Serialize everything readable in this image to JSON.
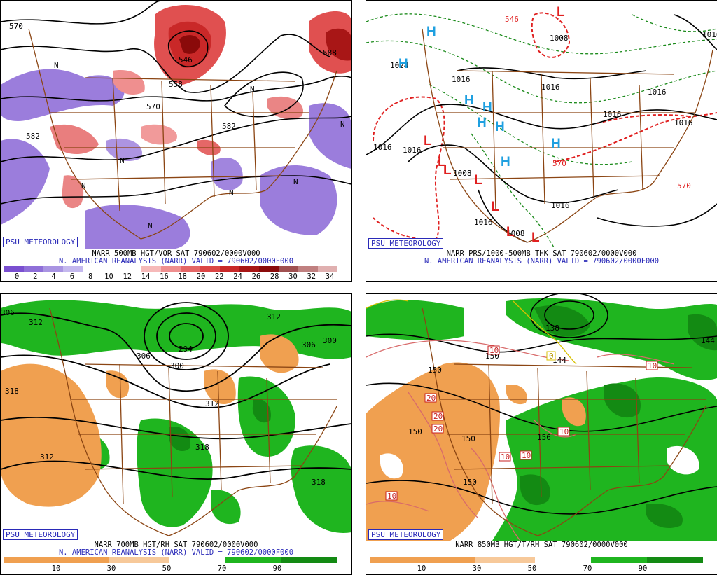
{
  "panels": [
    {
      "badge": "PSU METEOROLOGY",
      "title": "NARR 500MB HGT/VOR SAT 790602/0000V000",
      "subtitle": "N. AMERICAN REANALYSIS (NARR) VALID = 790602/0000F000",
      "colorbar_ticks": [
        "0",
        "2",
        "4",
        "6",
        "8",
        "10",
        "12",
        "14",
        "16",
        "18",
        "20",
        "22",
        "24",
        "26",
        "28",
        "30",
        "32",
        "34"
      ],
      "colorbar_colors": [
        "#7a4fd0",
        "#8f6fd8",
        "#a994e2",
        "#c4b8ee",
        "#ffffff",
        "#ffffff",
        "#ffffff",
        "#f6b9b9",
        "#ef8f8f",
        "#e56767",
        "#dc4646",
        "#c92828",
        "#a81616",
        "#8a0a0a",
        "#a05050",
        "#c08080",
        "#e0b0b0"
      ],
      "contour_labels": [
        "570",
        "546",
        "558",
        "570",
        "582",
        "582",
        "588",
        "N",
        "N",
        "N",
        "N",
        "N",
        "N",
        "N",
        "N"
      ]
    },
    {
      "badge": "PSU METEOROLOGY",
      "title": "NARR PRS/1000-500MB THK SAT 790602/0000V000",
      "subtitle": "N. AMERICAN REANALYSIS (NARR) VALID = 790602/0000F000",
      "pressure_labels": [
        "1024",
        "1016",
        "1008",
        "1016",
        "1016",
        "1016",
        "1016",
        "1016",
        "1016",
        "1008",
        "1008",
        "1016",
        "1016",
        "1016"
      ],
      "thickness_labels": [
        "546",
        "570",
        "570"
      ],
      "high_symbol": "H",
      "low_symbol": "L"
    },
    {
      "badge": "PSU METEOROLOGY",
      "title": "NARR 700MB HGT/RH SAT 790602/0000V000",
      "subtitle": "N. AMERICAN REANALYSIS (NARR) VALID = 790602/0000F000",
      "colorbar_ticks": [
        "10",
        "30",
        "50",
        "70",
        "90"
      ],
      "contour_labels": [
        "306",
        "312",
        "294",
        "300",
        "306",
        "312",
        "318",
        "306",
        "300",
        "312",
        "318",
        "312",
        "318"
      ]
    },
    {
      "badge": "PSU METEOROLOGY",
      "title": "NARR 850MB HGT/T/RH SAT 790602/0000V000",
      "colorbar_ticks": [
        "10",
        "30",
        "50",
        "70",
        "90"
      ],
      "contour_labels": [
        "138",
        "144",
        "144",
        "150",
        "150",
        "150",
        "150",
        "156",
        "150"
      ],
      "temp_labels": [
        "10",
        "10",
        "20",
        "20",
        "20",
        "10",
        "10",
        "10",
        "10",
        "0"
      ]
    }
  ],
  "colors": {
    "badge_blue": "#2a2ab8",
    "map_brown": "#8b4513",
    "rh_green": "#1fb51f",
    "rh_dark_green": "#138a13",
    "rh_orange": "#f0a050",
    "vor_red": "#e05050",
    "vor_purple": "#8a66d6",
    "high_cyan": "#1fa0e0",
    "low_red": "#e02020"
  }
}
